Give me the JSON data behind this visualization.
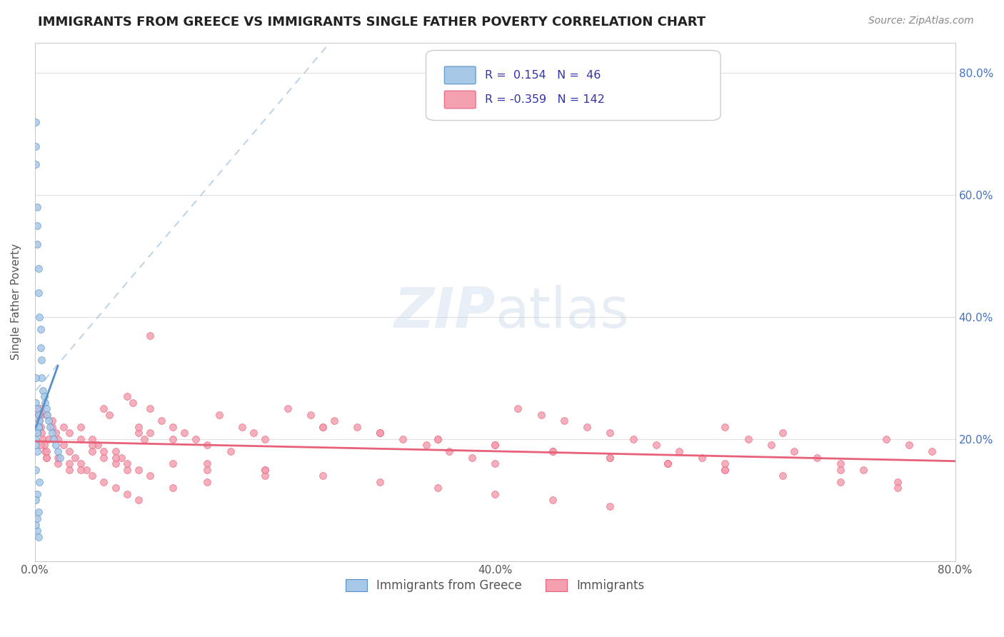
{
  "title": "IMMIGRANTS FROM GREECE VS IMMIGRANTS SINGLE FATHER POVERTY CORRELATION CHART",
  "source": "Source: ZipAtlas.com",
  "ylabel": "Single Father Poverty",
  "legend_label1": "Immigrants from Greece",
  "legend_label2": "Immigrants",
  "r1": 0.154,
  "n1": 46,
  "r2": -0.359,
  "n2": 142,
  "xlim": [
    0.0,
    0.8
  ],
  "ylim": [
    0.0,
    0.85
  ],
  "right_yticks": [
    0.2,
    0.4,
    0.6,
    0.8
  ],
  "right_yticklabels": [
    "20.0%",
    "40.0%",
    "60.0%",
    "80.0%"
  ],
  "color_blue": "#a8c8e8",
  "color_pink": "#f4a0b0",
  "color_blue_line": "#5590c8",
  "color_pink_line": "#e8607a",
  "background_color": "#ffffff",
  "grid_color": "#e0e0e0",
  "blue_scatter_x": [
    0.001,
    0.001,
    0.001,
    0.002,
    0.002,
    0.002,
    0.003,
    0.003,
    0.004,
    0.005,
    0.005,
    0.006,
    0.006,
    0.007,
    0.008,
    0.009,
    0.01,
    0.011,
    0.012,
    0.013,
    0.015,
    0.016,
    0.018,
    0.02,
    0.022,
    0.001,
    0.002,
    0.003,
    0.004,
    0.003,
    0.002,
    0.001,
    0.001,
    0.002,
    0.003,
    0.002,
    0.001,
    0.004,
    0.002,
    0.003,
    0.001,
    0.002,
    0.003,
    0.001,
    0.002,
    0.001
  ],
  "blue_scatter_y": [
    0.72,
    0.68,
    0.65,
    0.58,
    0.55,
    0.52,
    0.48,
    0.44,
    0.4,
    0.38,
    0.35,
    0.33,
    0.3,
    0.28,
    0.27,
    0.26,
    0.25,
    0.24,
    0.23,
    0.22,
    0.21,
    0.2,
    0.19,
    0.18,
    0.17,
    0.26,
    0.25,
    0.24,
    0.23,
    0.22,
    0.21,
    0.2,
    0.19,
    0.18,
    0.22,
    0.21,
    0.15,
    0.13,
    0.05,
    0.04,
    0.06,
    0.07,
    0.08,
    0.3,
    0.11,
    0.1
  ],
  "pink_scatter_x": [
    0.002,
    0.003,
    0.004,
    0.005,
    0.006,
    0.007,
    0.008,
    0.009,
    0.01,
    0.012,
    0.015,
    0.018,
    0.02,
    0.025,
    0.03,
    0.035,
    0.04,
    0.045,
    0.05,
    0.055,
    0.06,
    0.065,
    0.07,
    0.075,
    0.08,
    0.085,
    0.09,
    0.095,
    0.1,
    0.11,
    0.12,
    0.13,
    0.14,
    0.15,
    0.16,
    0.17,
    0.18,
    0.19,
    0.2,
    0.22,
    0.24,
    0.26,
    0.28,
    0.3,
    0.32,
    0.34,
    0.36,
    0.38,
    0.4,
    0.42,
    0.44,
    0.46,
    0.48,
    0.5,
    0.52,
    0.54,
    0.56,
    0.58,
    0.6,
    0.62,
    0.64,
    0.66,
    0.68,
    0.7,
    0.72,
    0.74,
    0.76,
    0.78,
    0.003,
    0.005,
    0.01,
    0.02,
    0.03,
    0.04,
    0.05,
    0.06,
    0.07,
    0.08,
    0.09,
    0.1,
    0.12,
    0.15,
    0.2,
    0.25,
    0.3,
    0.35,
    0.4,
    0.45,
    0.5,
    0.55,
    0.6,
    0.65,
    0.7,
    0.75,
    0.005,
    0.01,
    0.02,
    0.03,
    0.04,
    0.05,
    0.06,
    0.07,
    0.08,
    0.09,
    0.1,
    0.12,
    0.15,
    0.2,
    0.25,
    0.3,
    0.35,
    0.4,
    0.45,
    0.5,
    0.55,
    0.6,
    0.65,
    0.7,
    0.75,
    0.005,
    0.01,
    0.015,
    0.025,
    0.03,
    0.04,
    0.05,
    0.06,
    0.07,
    0.08,
    0.09,
    0.1,
    0.12,
    0.15,
    0.2,
    0.25,
    0.3,
    0.35,
    0.4,
    0.45,
    0.5,
    0.55,
    0.6
  ],
  "pink_scatter_y": [
    0.25,
    0.24,
    0.23,
    0.22,
    0.21,
    0.2,
    0.19,
    0.18,
    0.17,
    0.2,
    0.22,
    0.21,
    0.2,
    0.19,
    0.18,
    0.17,
    0.16,
    0.15,
    0.2,
    0.19,
    0.25,
    0.24,
    0.18,
    0.17,
    0.27,
    0.26,
    0.21,
    0.2,
    0.25,
    0.23,
    0.22,
    0.21,
    0.2,
    0.19,
    0.24,
    0.18,
    0.22,
    0.21,
    0.2,
    0.25,
    0.24,
    0.23,
    0.22,
    0.21,
    0.2,
    0.19,
    0.18,
    0.17,
    0.16,
    0.25,
    0.24,
    0.23,
    0.22,
    0.21,
    0.2,
    0.19,
    0.18,
    0.17,
    0.16,
    0.2,
    0.19,
    0.18,
    0.17,
    0.16,
    0.15,
    0.2,
    0.19,
    0.18,
    0.22,
    0.24,
    0.17,
    0.16,
    0.15,
    0.22,
    0.18,
    0.17,
    0.16,
    0.15,
    0.22,
    0.21,
    0.2,
    0.16,
    0.15,
    0.22,
    0.21,
    0.2,
    0.19,
    0.18,
    0.17,
    0.16,
    0.22,
    0.21,
    0.15,
    0.13,
    0.19,
    0.18,
    0.17,
    0.16,
    0.15,
    0.14,
    0.13,
    0.12,
    0.11,
    0.1,
    0.37,
    0.16,
    0.15,
    0.14,
    0.22,
    0.21,
    0.2,
    0.19,
    0.18,
    0.17,
    0.16,
    0.15,
    0.14,
    0.13,
    0.12,
    0.25,
    0.24,
    0.23,
    0.22,
    0.21,
    0.2,
    0.19,
    0.18,
    0.17,
    0.16,
    0.15,
    0.14,
    0.12,
    0.13,
    0.15,
    0.14,
    0.13,
    0.12,
    0.11,
    0.1,
    0.09,
    0.16,
    0.15
  ]
}
